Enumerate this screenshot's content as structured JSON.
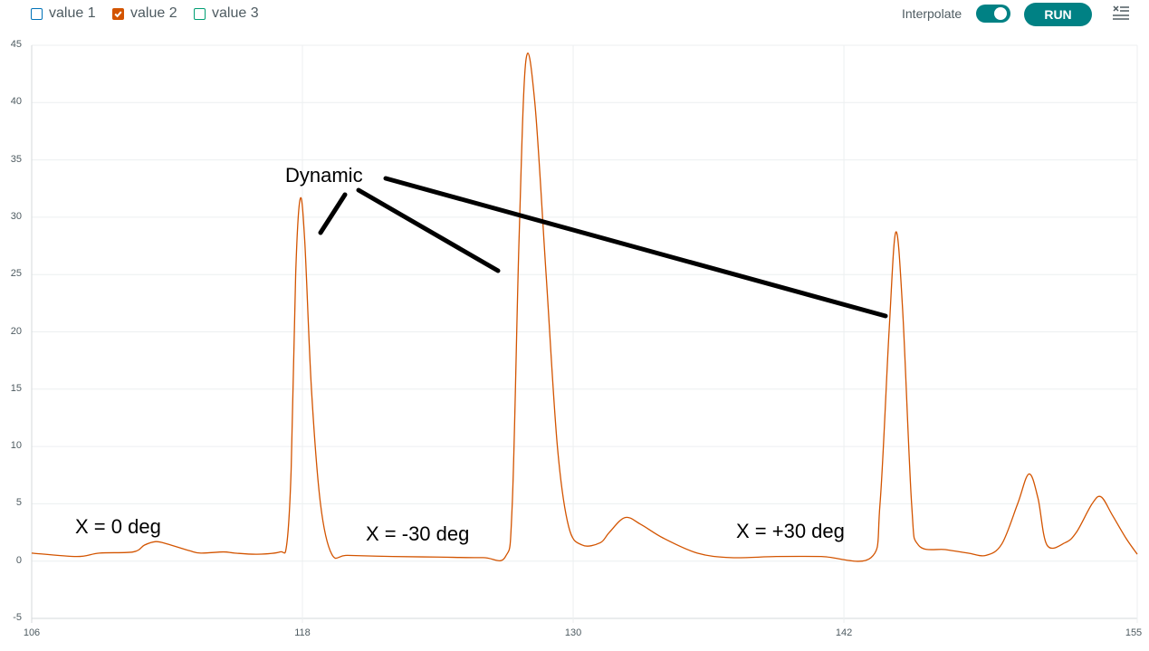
{
  "toolbar": {
    "legend": [
      {
        "label": "value 1",
        "checked": false,
        "color": "#0072b8"
      },
      {
        "label": "value 2",
        "checked": true,
        "color": "#d35400"
      },
      {
        "label": "value 3",
        "checked": false,
        "color": "#009e73"
      }
    ],
    "interpolate_label": "Interpolate",
    "interpolate_on": true,
    "run_label": "RUN",
    "accent_color": "#008184"
  },
  "annotations": {
    "dynamic": "Dynamic",
    "x0": "X = 0 deg",
    "xm30": "X = -30 deg",
    "xp30": "X = +30 deg"
  },
  "axes": {
    "y_ticks": [
      "45",
      "40",
      "35",
      "30",
      "25",
      "20",
      "15",
      "10",
      "5",
      "0",
      "-5"
    ],
    "x_ticks": [
      "106",
      "118",
      "130",
      "142",
      "155"
    ]
  },
  "chart_data": {
    "type": "line",
    "title": "",
    "xlabel": "",
    "ylabel": "",
    "xlim": [
      106,
      155
    ],
    "ylim": [
      -5,
      45
    ],
    "grid": true,
    "legend_position": "top-left",
    "x_tick_labels": [
      106,
      118,
      130,
      142,
      155
    ],
    "y_tick_labels": [
      45,
      40,
      35,
      30,
      25,
      20,
      15,
      10,
      5,
      0,
      -5
    ],
    "series": [
      {
        "name": "value 2",
        "color": "#d35400",
        "points": [
          [
            106.0,
            0.7
          ],
          [
            108.0,
            0.4
          ],
          [
            109.0,
            0.7
          ],
          [
            110.5,
            0.8
          ],
          [
            111.0,
            1.4
          ],
          [
            111.5,
            1.7
          ],
          [
            112.0,
            1.5
          ],
          [
            113.0,
            0.9
          ],
          [
            113.5,
            0.7
          ],
          [
            114.5,
            0.8
          ],
          [
            115.0,
            0.7
          ],
          [
            116.0,
            0.6
          ],
          [
            117.0,
            0.8
          ],
          [
            117.3,
            1.4
          ],
          [
            117.5,
            8.0
          ],
          [
            117.7,
            25.0
          ],
          [
            117.9,
            31.6
          ],
          [
            118.1,
            28.0
          ],
          [
            118.4,
            15.0
          ],
          [
            118.8,
            5.0
          ],
          [
            119.3,
            0.6
          ],
          [
            120.0,
            0.5
          ],
          [
            122.0,
            0.4
          ],
          [
            124.0,
            0.35
          ],
          [
            126.0,
            0.3
          ],
          [
            127.0,
            0.4
          ],
          [
            127.3,
            5.0
          ],
          [
            127.6,
            28.0
          ],
          [
            127.9,
            43.6
          ],
          [
            128.3,
            40.0
          ],
          [
            128.8,
            25.0
          ],
          [
            129.3,
            10.0
          ],
          [
            129.8,
            3.0
          ],
          [
            130.4,
            1.4
          ],
          [
            131.2,
            1.6
          ],
          [
            131.6,
            2.5
          ],
          [
            132.3,
            3.8
          ],
          [
            133.0,
            3.2
          ],
          [
            134.0,
            2.0
          ],
          [
            135.5,
            0.7
          ],
          [
            137.0,
            0.3
          ],
          [
            139.0,
            0.4
          ],
          [
            141.0,
            0.4
          ],
          [
            143.2,
            0.3
          ],
          [
            143.6,
            5.0
          ],
          [
            144.0,
            20.0
          ],
          [
            144.3,
            28.7
          ],
          [
            144.6,
            22.0
          ],
          [
            145.0,
            5.0
          ],
          [
            145.3,
            1.4
          ],
          [
            146.5,
            1.0
          ],
          [
            147.5,
            0.7
          ],
          [
            148.3,
            0.5
          ],
          [
            149.0,
            1.5
          ],
          [
            149.7,
            5.0
          ],
          [
            150.2,
            7.6
          ],
          [
            150.6,
            5.5
          ],
          [
            151.0,
            1.4
          ],
          [
            151.8,
            1.6
          ],
          [
            152.3,
            2.5
          ],
          [
            153.0,
            5.0
          ],
          [
            153.4,
            5.6
          ],
          [
            153.9,
            4.0
          ],
          [
            154.5,
            2.0
          ],
          [
            155.0,
            0.6
          ]
        ]
      }
    ]
  }
}
